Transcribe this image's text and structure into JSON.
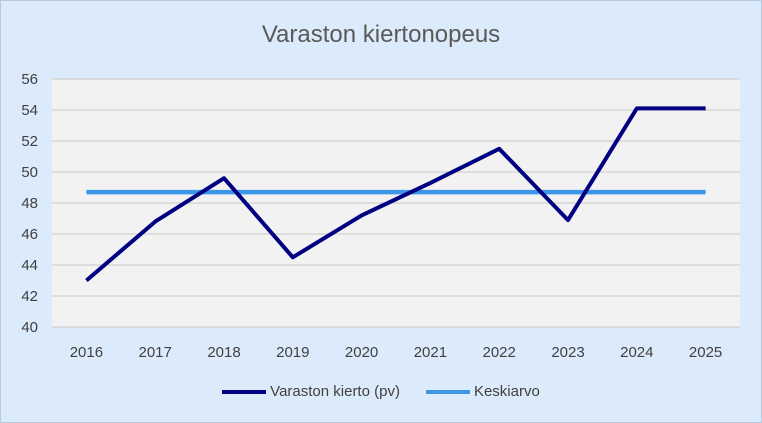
{
  "chart_data": {
    "type": "line",
    "title": "Varaston kiertonopeus",
    "categories": [
      "2016",
      "2017",
      "2018",
      "2019",
      "2020",
      "2021",
      "2022",
      "2023",
      "2024",
      "2025"
    ],
    "series": [
      {
        "name": "Varaston kierto (pv)",
        "color": "#000080",
        "values": [
          43.0,
          46.8,
          49.6,
          44.5,
          47.2,
          49.3,
          51.5,
          46.9,
          54.1,
          54.1
        ]
      },
      {
        "name": "Keskiarvo",
        "color": "#3d95e7",
        "values": [
          48.7,
          48.7,
          48.7,
          48.7,
          48.7,
          48.7,
          48.7,
          48.7,
          48.7,
          48.7
        ]
      }
    ],
    "ylim": [
      40,
      56
    ],
    "yticks": [
      40,
      42,
      44,
      46,
      48,
      50,
      52,
      54,
      56
    ],
    "grid": true,
    "legend_position": "bottom"
  }
}
